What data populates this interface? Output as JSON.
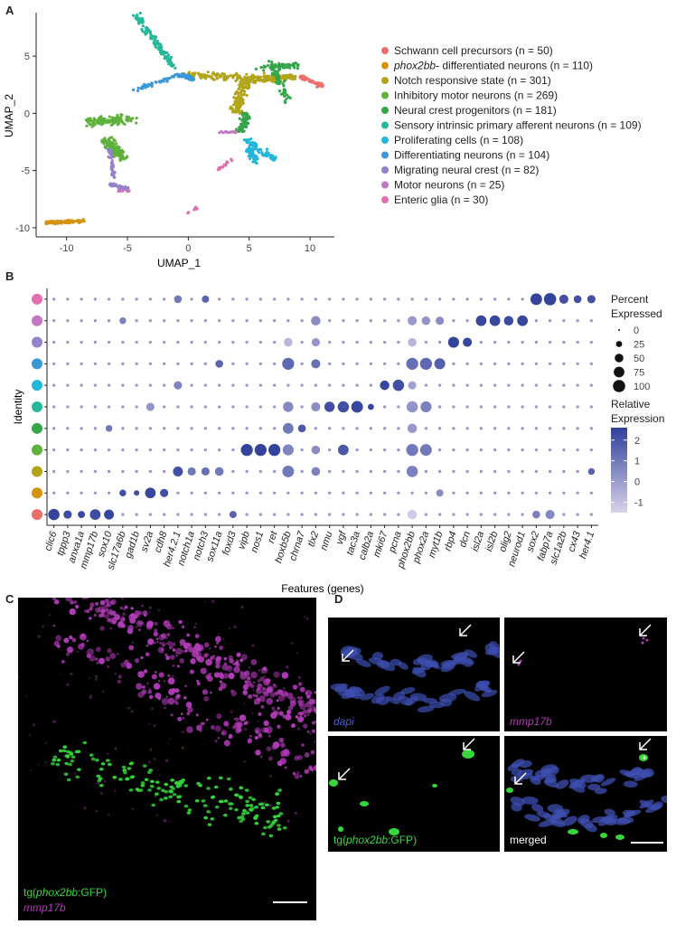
{
  "panels": {
    "a": "A",
    "b": "B",
    "c": "C",
    "d": "D"
  },
  "colors": {
    "schwann": "#EB6F6A",
    "phox2bb": "#D4930F",
    "notch": "#B1A418",
    "inhibitory": "#5EB23C",
    "ncp": "#35A54A",
    "sensory": "#27B89A",
    "prolif": "#23B6D8",
    "diff": "#3B97D6",
    "migrating": "#9481C9",
    "motor": "#C177C2",
    "enteric": "#E26FAF",
    "dot_low": "#D9D3EA",
    "dot_high": "#2F3F9A",
    "dapi": "#3D4FB0",
    "gfp": "#35D63C",
    "mmp": "#B23BB9"
  },
  "chart_data": [
    {
      "type": "scatter",
      "id": "umap",
      "xlabel": "UMAP_1",
      "ylabel": "UMAP_2",
      "xlim": [
        -12.5,
        12
      ],
      "ylim": [
        -10.8,
        8.8
      ],
      "xticks": [
        -10,
        -5,
        0,
        5,
        10
      ],
      "yticks": [
        -10,
        -5,
        0,
        5
      ],
      "legend_position": "right",
      "series": [
        {
          "name": "Schwann cell precursors (n = 50)",
          "color_key": "schwann",
          "italic_prefix": "",
          "n": 50,
          "center": [
            10.2,
            2.7
          ]
        },
        {
          "name": " differentiated neurons (n = 110)",
          "color_key": "phox2bb",
          "italic_prefix": "phox2bb-",
          "n": 110,
          "center": [
            -10.5,
            -9.5
          ]
        },
        {
          "name": "Notch responsive state (n = 301)",
          "color_key": "notch",
          "italic_prefix": "",
          "n": 301,
          "center": [
            3.5,
            2.5
          ]
        },
        {
          "name": "Inhibitory motor neurons (n = 269)",
          "color_key": "inhibitory",
          "italic_prefix": "",
          "n": 269,
          "center": [
            -6.0,
            -1.5
          ]
        },
        {
          "name": "Neural crest progenitors (n = 181)",
          "color_key": "ncp",
          "italic_prefix": "",
          "n": 181,
          "center": [
            7.2,
            3.8
          ]
        },
        {
          "name": "Sensory intrinsic primary afferent neurons (n = 109)",
          "color_key": "sensory",
          "italic_prefix": "",
          "n": 109,
          "center": [
            -3.5,
            6.5
          ]
        },
        {
          "name": "Proliferating cells (n = 108)",
          "color_key": "prolif",
          "italic_prefix": "",
          "n": 108,
          "center": [
            5.5,
            -3.0
          ]
        },
        {
          "name": "Differentiating neurons (n = 104)",
          "color_key": "diff",
          "italic_prefix": "",
          "n": 104,
          "center": [
            -1.0,
            3.0
          ]
        },
        {
          "name": "Migrating neural crest (n = 82)",
          "color_key": "migrating",
          "italic_prefix": "",
          "n": 82,
          "center": [
            -5.5,
            -5.5
          ]
        },
        {
          "name": "Motor neurons (n = 25)",
          "color_key": "motor",
          "italic_prefix": "",
          "n": 25,
          "center": [
            3.2,
            -2.0
          ]
        },
        {
          "name": "Enteric glia (n = 30)",
          "color_key": "enteric",
          "italic_prefix": "",
          "n": 30,
          "center": [
            2.8,
            -4.5
          ]
        }
      ]
    },
    {
      "type": "dotplot",
      "id": "dotplot",
      "xlabel": "Features (genes)",
      "ylabel": "Identity",
      "genes": [
        "clic6",
        "tppp3",
        "anxa1a",
        "mmp17b",
        "sox10",
        "slc17a6b",
        "gad1b",
        "sv2a",
        "cdh8",
        "her4.2.1",
        "notch1a",
        "notch3",
        "sox11a",
        "foxd3",
        "vipb",
        "nos1",
        "ret",
        "hoxb5b",
        "chrna7",
        "tlx2",
        "nmu",
        "vgf",
        "tac3a",
        "calb2a",
        "mki67",
        "pcna",
        "phox2bb",
        "phox2a",
        "myt1b",
        "rbp4",
        "dcn",
        "isl2a",
        "isl2b",
        "olig2",
        "neurod1",
        "sox2",
        "fabp7a",
        "slc1a2b",
        "cx43",
        "her4.1"
      ],
      "identities": [
        "enteric",
        "motor",
        "migrating",
        "diff",
        "prolif",
        "sensory",
        "ncp",
        "inhibitory",
        "notch",
        "phox2bb",
        "schwann"
      ],
      "size_legend_title": [
        "Percent",
        "Expressed"
      ],
      "size_legend": [
        0,
        25,
        50,
        75,
        100
      ],
      "color_legend_title": [
        "Relative",
        "Expression"
      ],
      "color_legend": [
        2,
        1,
        0,
        -1
      ],
      "highlights": [
        {
          "row": "enteric",
          "gene": "sox2",
          "pct": 90,
          "expr": 2.3
        },
        {
          "row": "enteric",
          "gene": "fabp7a",
          "pct": 100,
          "expr": 2.3
        },
        {
          "row": "enteric",
          "gene": "slc1a2b",
          "pct": 55,
          "expr": 2.0
        },
        {
          "row": "enteric",
          "gene": "cx43",
          "pct": 40,
          "expr": 2.0
        },
        {
          "row": "enteric",
          "gene": "her4.1",
          "pct": 45,
          "expr": 2.0
        },
        {
          "row": "enteric",
          "gene": "her4.2.1",
          "pct": 40,
          "expr": 1.0
        },
        {
          "row": "enteric",
          "gene": "notch3",
          "pct": 35,
          "expr": 1.5
        },
        {
          "row": "motor",
          "gene": "isl2a",
          "pct": 75,
          "expr": 2.2
        },
        {
          "row": "motor",
          "gene": "isl2b",
          "pct": 75,
          "expr": 2.2
        },
        {
          "row": "motor",
          "gene": "olig2",
          "pct": 60,
          "expr": 2.1
        },
        {
          "row": "motor",
          "gene": "neurod1",
          "pct": 75,
          "expr": 2.2
        },
        {
          "row": "motor",
          "gene": "tlx2",
          "pct": 60,
          "expr": 0.5
        },
        {
          "row": "motor",
          "gene": "phox2bb",
          "pct": 55,
          "expr": 0.2
        },
        {
          "row": "motor",
          "gene": "phox2a",
          "pct": 50,
          "expr": 0.3
        },
        {
          "row": "motor",
          "gene": "myt1b",
          "pct": 45,
          "expr": 0.5
        },
        {
          "row": "motor",
          "gene": "slc17a6b",
          "pct": 30,
          "expr": 0.8
        },
        {
          "row": "migrating",
          "gene": "rbp4",
          "pct": 80,
          "expr": 2.3
        },
        {
          "row": "migrating",
          "gene": "dcn",
          "pct": 55,
          "expr": 2.2
        },
        {
          "row": "migrating",
          "gene": "hoxb5b",
          "pct": 50,
          "expr": -0.5
        },
        {
          "row": "migrating",
          "gene": "tlx2",
          "pct": 45,
          "expr": 0.3
        },
        {
          "row": "migrating",
          "gene": "phox2bb",
          "pct": 50,
          "expr": -0.5
        },
        {
          "row": "diff",
          "gene": "hoxb5b",
          "pct": 95,
          "expr": 1.4
        },
        {
          "row": "diff",
          "gene": "tlx2",
          "pct": 55,
          "expr": 1.2
        },
        {
          "row": "diff",
          "gene": "phox2bb",
          "pct": 95,
          "expr": 1.2
        },
        {
          "row": "diff",
          "gene": "phox2a",
          "pct": 95,
          "expr": 1.4
        },
        {
          "row": "diff",
          "gene": "myt1b",
          "pct": 80,
          "expr": 1.6
        },
        {
          "row": "diff",
          "gene": "sox11a",
          "pct": 40,
          "expr": 1.5
        },
        {
          "row": "prolif",
          "gene": "mki67",
          "pct": 60,
          "expr": 2.2
        },
        {
          "row": "prolif",
          "gene": "pcna",
          "pct": 85,
          "expr": 2.0
        },
        {
          "row": "prolif",
          "gene": "her4.2.1",
          "pct": 45,
          "expr": 0.7
        },
        {
          "row": "prolif",
          "gene": "phox2bb",
          "pct": 45,
          "expr": 0.0
        },
        {
          "row": "sensory",
          "gene": "nmu",
          "pct": 70,
          "expr": 2.0
        },
        {
          "row": "sensory",
          "gene": "vgf",
          "pct": 85,
          "expr": 2.0
        },
        {
          "row": "sensory",
          "gene": "tac3a",
          "pct": 90,
          "expr": 2.2
        },
        {
          "row": "sensory",
          "gene": "calb2a",
          "pct": 25,
          "expr": 2.2
        },
        {
          "row": "sensory",
          "gene": "hoxb5b",
          "pct": 70,
          "expr": 0.6
        },
        {
          "row": "sensory",
          "gene": "phox2bb",
          "pct": 85,
          "expr": 0.3
        },
        {
          "row": "sensory",
          "gene": "phox2a",
          "pct": 80,
          "expr": 0.8
        },
        {
          "row": "sensory",
          "gene": "tlx2",
          "pct": 55,
          "expr": 0.5
        },
        {
          "row": "sensory",
          "gene": "sv2a",
          "pct": 45,
          "expr": 0.3
        },
        {
          "row": "ncp",
          "gene": "hoxb5b",
          "pct": 75,
          "expr": 1.0
        },
        {
          "row": "ncp",
          "gene": "chrna7",
          "pct": 40,
          "expr": 1.8
        },
        {
          "row": "ncp",
          "gene": "phox2bb",
          "pct": 60,
          "expr": 0.2
        },
        {
          "row": "ncp",
          "gene": "sox10",
          "pct": 30,
          "expr": 1.0
        },
        {
          "row": "inhibitory",
          "gene": "vipb",
          "pct": 95,
          "expr": 2.3
        },
        {
          "row": "inhibitory",
          "gene": "nos1",
          "pct": 95,
          "expr": 2.3
        },
        {
          "row": "inhibitory",
          "gene": "ret",
          "pct": 95,
          "expr": 2.3
        },
        {
          "row": "inhibitory",
          "gene": "hoxb5b",
          "pct": 80,
          "expr": 0.7
        },
        {
          "row": "inhibitory",
          "gene": "vgf",
          "pct": 75,
          "expr": 1.8
        },
        {
          "row": "inhibitory",
          "gene": "phox2bb",
          "pct": 95,
          "expr": 1.0
        },
        {
          "row": "inhibitory",
          "gene": "phox2a",
          "pct": 90,
          "expr": 1.0
        },
        {
          "row": "inhibitory",
          "gene": "tlx2",
          "pct": 50,
          "expr": 0.5
        },
        {
          "row": "notch",
          "gene": "her4.2.1",
          "pct": 65,
          "expr": 2.0
        },
        {
          "row": "notch",
          "gene": "notch1a",
          "pct": 45,
          "expr": 1.0
        },
        {
          "row": "notch",
          "gene": "notch3",
          "pct": 45,
          "expr": 1.2
        },
        {
          "row": "notch",
          "gene": "sox11a",
          "pct": 50,
          "expr": 1.0
        },
        {
          "row": "notch",
          "gene": "hoxb5b",
          "pct": 90,
          "expr": 1.0
        },
        {
          "row": "notch",
          "gene": "tlx2",
          "pct": 50,
          "expr": 0.8
        },
        {
          "row": "notch",
          "gene": "phox2bb",
          "pct": 85,
          "expr": 0.8
        },
        {
          "row": "notch",
          "gene": "her4.1",
          "pct": 30,
          "expr": 1.5
        },
        {
          "row": "phox2bb",
          "gene": "slc17a6b",
          "pct": 30,
          "expr": 2.0
        },
        {
          "row": "phox2bb",
          "gene": "gad1b",
          "pct": 20,
          "expr": 2.0
        },
        {
          "row": "phox2bb",
          "gene": "sv2a",
          "pct": 75,
          "expr": 2.2
        },
        {
          "row": "phox2bb",
          "gene": "cdh8",
          "pct": 45,
          "expr": 2.0
        },
        {
          "row": "phox2bb",
          "gene": "myt1b",
          "pct": 35,
          "expr": 0.5
        },
        {
          "row": "schwann",
          "gene": "clic6",
          "pct": 85,
          "expr": 2.3
        },
        {
          "row": "schwann",
          "gene": "tppp3",
          "pct": 45,
          "expr": 2.1
        },
        {
          "row": "schwann",
          "gene": "anxa1a",
          "pct": 35,
          "expr": 2.1
        },
        {
          "row": "schwann",
          "gene": "mmp17b",
          "pct": 75,
          "expr": 2.1
        },
        {
          "row": "schwann",
          "gene": "sox10",
          "pct": 65,
          "expr": 2.2
        },
        {
          "row": "schwann",
          "gene": "foxd3",
          "pct": 35,
          "expr": 1.5
        },
        {
          "row": "schwann",
          "gene": "phox2bb",
          "pct": 60,
          "expr": -1.0
        },
        {
          "row": "schwann",
          "gene": "sox2",
          "pct": 40,
          "expr": 0.8
        },
        {
          "row": "schwann",
          "gene": "fabp7a",
          "pct": 55,
          "expr": 0.6
        }
      ]
    }
  ],
  "panel_c": {
    "label_gfp_prefix": "tg(",
    "label_gfp_italic": "phox2bb",
    "label_gfp_suffix": ":GFP)",
    "label_mmp": "mmp17b"
  },
  "panel_d": {
    "tl_label": "dapi",
    "tr_label": "mmp17b",
    "bl_prefix": "tg(",
    "bl_italic": "phox2bb",
    "bl_suffix": ":GFP)",
    "br_label": "merged"
  }
}
